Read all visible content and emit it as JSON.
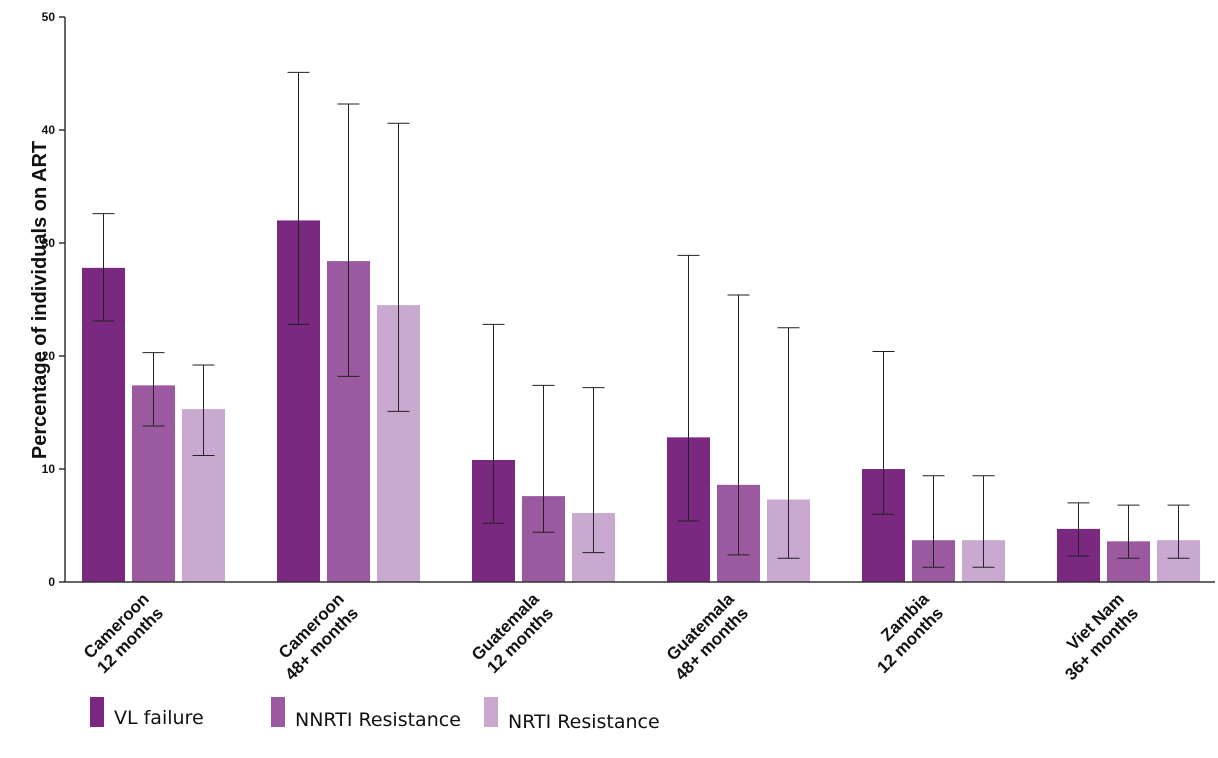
{
  "chart_data": {
    "type": "bar",
    "title": "",
    "xlabel": "",
    "ylabel": "Percentage of individuals on ART",
    "ylim": [
      0,
      50
    ],
    "yticks": [
      0,
      10,
      20,
      30,
      40,
      50
    ],
    "grid": false,
    "legend_position": "bottom-left",
    "categories": [
      [
        "Cameroon",
        "12 months"
      ],
      [
        "Cameroon",
        "48+ months"
      ],
      [
        "Guatemala",
        "12 months"
      ],
      [
        "Guatemala",
        "48+ months"
      ],
      [
        "Zambia",
        "12 months"
      ],
      [
        "Viet Nam",
        "36+ months"
      ]
    ],
    "series": [
      {
        "name": "VL failure",
        "color": "#7a2880",
        "values": [
          27.8,
          32.0,
          10.8,
          12.8,
          10.0,
          4.7
        ],
        "error_low": [
          23.1,
          22.8,
          5.2,
          5.4,
          6.0,
          2.3
        ],
        "error_high": [
          32.6,
          45.1,
          22.8,
          28.9,
          20.4,
          7.0
        ]
      },
      {
        "name": "NNRTI Resistance",
        "color": "#9b5a9f",
        "values": [
          17.4,
          28.4,
          7.6,
          8.6,
          3.7,
          3.6
        ],
        "error_low": [
          13.8,
          18.2,
          4.4,
          2.4,
          1.3,
          2.1
        ],
        "error_high": [
          20.3,
          42.3,
          17.4,
          25.4,
          9.4,
          6.8
        ]
      },
      {
        "name": "NRTI Resistance",
        "color": "#c9a9cf",
        "values": [
          15.3,
          24.5,
          6.1,
          7.3,
          3.7,
          3.7
        ],
        "error_low": [
          11.2,
          15.1,
          2.6,
          2.1,
          1.3,
          2.1
        ],
        "error_high": [
          19.2,
          40.6,
          17.2,
          22.5,
          9.4,
          6.8
        ]
      }
    ]
  }
}
